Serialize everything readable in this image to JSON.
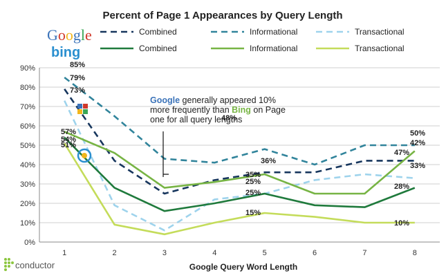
{
  "chart_data": {
    "type": "line",
    "title": "Percent of Page 1 Appearances by Query Length",
    "xlabel": "Google Query Word Length",
    "ylabel": "",
    "categories": [
      "1",
      "2",
      "3",
      "4",
      "5",
      "6",
      "7",
      "8"
    ],
    "ylim": [
      0,
      90
    ],
    "yticks": [
      "0%",
      "10%",
      "20%",
      "30%",
      "40%",
      "50%",
      "60%",
      "70%",
      "80%",
      "90%"
    ],
    "grid": true,
    "legend": {
      "placement": "top",
      "groups": [
        {
          "logo": "Google",
          "entries": [
            "Combined",
            "Informational",
            "Transactional"
          ]
        },
        {
          "logo": "bing",
          "entries": [
            "Combined",
            "Informational",
            "Transactional"
          ]
        }
      ]
    },
    "series": [
      {
        "name": "Combined",
        "engine": "Google",
        "style": "dashed",
        "color": "#17365d",
        "values": [
          79,
          42,
          25,
          32,
          36,
          36,
          42,
          42
        ],
        "labels": [
          "79%",
          "",
          "",
          "",
          "",
          "",
          "",
          "42%"
        ]
      },
      {
        "name": "Informational",
        "engine": "Google",
        "style": "dashed",
        "color": "#31849b",
        "values": [
          85,
          65,
          43,
          41,
          48,
          40,
          50,
          50
        ],
        "labels": [
          "85%",
          "",
          "",
          "",
          "48%",
          "",
          "",
          "50%"
        ]
      },
      {
        "name": "Transactional",
        "engine": "Google",
        "style": "dashed",
        "color": "#9ed3ec",
        "values": [
          73,
          19,
          6,
          22,
          25,
          32,
          35,
          33
        ],
        "labels": [
          "73%",
          "",
          "",
          "",
          "25%",
          "",
          "",
          "33%"
        ]
      },
      {
        "name": "Combined",
        "engine": "bing",
        "style": "solid",
        "color": "#1f7a3c",
        "values": [
          54,
          28,
          16,
          20,
          25,
          19,
          18,
          28
        ],
        "labels": [
          "54%",
          "",
          "",
          "",
          "25%",
          "",
          "",
          "28%"
        ]
      },
      {
        "name": "Informational",
        "engine": "bing",
        "style": "solid",
        "color": "#77b444",
        "values": [
          57,
          46,
          28,
          31,
          35,
          25,
          25,
          47
        ],
        "labels": [
          "57%",
          "",
          "",
          "",
          "35%",
          "",
          "",
          "47%"
        ]
      },
      {
        "name": "Transactional",
        "engine": "bing",
        "style": "solid",
        "color": "#c4dc5a",
        "values": [
          51,
          9,
          4,
          10,
          15,
          13,
          10,
          10
        ],
        "labels": [
          "51%",
          "",
          "",
          "",
          "15%",
          "",
          "",
          "10%"
        ]
      }
    ],
    "annotation": {
      "google_word": "Google",
      "line1_rest": " generally appeared 10%",
      "line2_pre": "more frequently than ",
      "bing_word": "Bing",
      "line2_post": " on Page",
      "line3": "one for all query lengths"
    },
    "label_36": "36%"
  },
  "branding": {
    "google_logo": "Google",
    "bing_logo": "bing",
    "footer_logo": "conductor"
  },
  "colors": {
    "google_blue": "#3b73b9",
    "bing_green": "#77b444"
  }
}
